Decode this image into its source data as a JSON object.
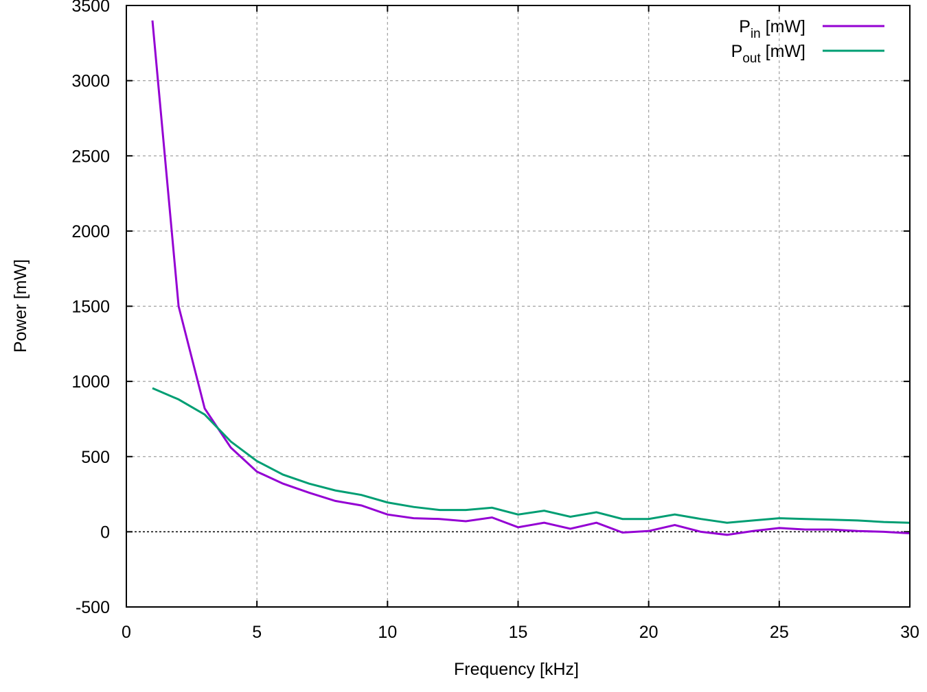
{
  "chart_data": {
    "type": "line",
    "title": "",
    "xlabel": "Frequency [kHz]",
    "ylabel": "Power [mW]",
    "xlim": [
      0,
      30
    ],
    "ylim": [
      -500,
      3500
    ],
    "xticks": [
      0,
      5,
      10,
      15,
      20,
      25,
      30
    ],
    "yticks": [
      -500,
      0,
      500,
      1000,
      1500,
      2000,
      2500,
      3000,
      3500
    ],
    "grid": true,
    "zero_line": true,
    "legend_position": "top-right",
    "x": [
      1,
      2,
      3,
      4,
      5,
      6,
      7,
      8,
      9,
      10,
      11,
      12,
      13,
      14,
      15,
      16,
      17,
      18,
      19,
      20,
      21,
      22,
      23,
      24,
      25,
      26,
      27,
      28,
      29,
      30
    ],
    "series": [
      {
        "name": "P_in [mW]",
        "name_base": "P",
        "name_sub": "in",
        "name_unit": "[mW]",
        "color": "#9400d3",
        "values": [
          3400,
          1500,
          820,
          560,
          400,
          320,
          260,
          205,
          175,
          115,
          90,
          85,
          70,
          95,
          30,
          60,
          20,
          60,
          -5,
          5,
          45,
          0,
          -20,
          5,
          25,
          15,
          15,
          5,
          0,
          -10
        ]
      },
      {
        "name": "P_out [mW]",
        "name_base": "P",
        "name_sub": "out",
        "name_unit": "[mW]",
        "color": "#009e73",
        "values": [
          955,
          880,
          780,
          600,
          470,
          380,
          320,
          275,
          245,
          195,
          165,
          145,
          145,
          160,
          115,
          140,
          100,
          130,
          85,
          85,
          115,
          85,
          60,
          75,
          90,
          85,
          80,
          75,
          65,
          60
        ]
      }
    ]
  }
}
